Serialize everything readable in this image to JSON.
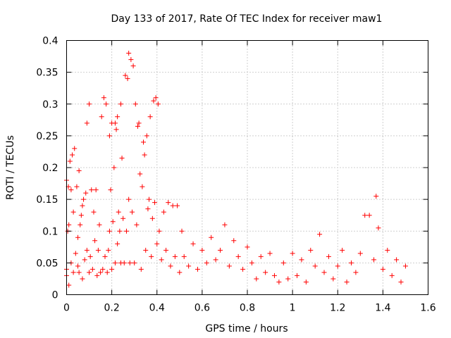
{
  "chart_data": {
    "type": "scatter",
    "title": "Day 133 of 2017, Rate Of TEC Index for receiver maw1",
    "xlabel": "GPS time / hours",
    "ylabel": "ROTI / TECUs",
    "xlim": [
      0,
      1.6
    ],
    "ylim": [
      0,
      0.4
    ],
    "x_ticks": [
      0,
      0.2,
      0.4,
      0.6,
      0.8,
      1.0,
      1.2,
      1.4,
      1.6
    ],
    "x_tick_labels": [
      "0",
      "0.2",
      "0.4",
      "0.6",
      "0.8",
      "1",
      "1.2",
      "1.4",
      "1.6"
    ],
    "y_ticks": [
      0,
      0.05,
      0.1,
      0.15,
      0.2,
      0.25,
      0.3,
      0.35,
      0.4
    ],
    "y_tick_labels": [
      "0",
      "0.05",
      "0.1",
      "0.15",
      "0.2",
      "0.25",
      "0.3",
      "0.35",
      "0.4"
    ],
    "grid": true,
    "marker": "plus",
    "series": [
      {
        "name": "ROTI",
        "color": "#ff0000",
        "points": [
          [
            0.0,
            0.03
          ],
          [
            0.0,
            0.04
          ],
          [
            0.0,
            0.18
          ],
          [
            0.005,
            0.1
          ],
          [
            0.008,
            0.17
          ],
          [
            0.01,
            0.015
          ],
          [
            0.01,
            0.11
          ],
          [
            0.015,
            0.21
          ],
          [
            0.02,
            0.05
          ],
          [
            0.02,
            0.165
          ],
          [
            0.025,
            0.22
          ],
          [
            0.03,
            0.035
          ],
          [
            0.03,
            0.13
          ],
          [
            0.035,
            0.23
          ],
          [
            0.04,
            0.065
          ],
          [
            0.045,
            0.17
          ],
          [
            0.05,
            0.045
          ],
          [
            0.05,
            0.09
          ],
          [
            0.055,
            0.035
          ],
          [
            0.055,
            0.195
          ],
          [
            0.06,
            0.11
          ],
          [
            0.065,
            0.125
          ],
          [
            0.07,
            0.025
          ],
          [
            0.07,
            0.14
          ],
          [
            0.075,
            0.15
          ],
          [
            0.08,
            0.055
          ],
          [
            0.085,
            0.16
          ],
          [
            0.09,
            0.07
          ],
          [
            0.09,
            0.27
          ],
          [
            0.1,
            0.035
          ],
          [
            0.1,
            0.3
          ],
          [
            0.105,
            0.06
          ],
          [
            0.11,
            0.165
          ],
          [
            0.115,
            0.04
          ],
          [
            0.12,
            0.13
          ],
          [
            0.125,
            0.085
          ],
          [
            0.13,
            0.165
          ],
          [
            0.135,
            0.03
          ],
          [
            0.14,
            0.07
          ],
          [
            0.145,
            0.11
          ],
          [
            0.15,
            0.035
          ],
          [
            0.155,
            0.28
          ],
          [
            0.16,
            0.04
          ],
          [
            0.165,
            0.31
          ],
          [
            0.17,
            0.06
          ],
          [
            0.175,
            0.3
          ],
          [
            0.18,
            0.035
          ],
          [
            0.185,
            0.07
          ],
          [
            0.19,
            0.1
          ],
          [
            0.19,
            0.25
          ],
          [
            0.195,
            0.165
          ],
          [
            0.2,
            0.04
          ],
          [
            0.2,
            0.27
          ],
          [
            0.205,
            0.115
          ],
          [
            0.21,
            0.2
          ],
          [
            0.215,
            0.05
          ],
          [
            0.215,
            0.27
          ],
          [
            0.22,
            0.26
          ],
          [
            0.225,
            0.08
          ],
          [
            0.225,
            0.28
          ],
          [
            0.23,
            0.13
          ],
          [
            0.235,
            0.1
          ],
          [
            0.24,
            0.05
          ],
          [
            0.24,
            0.3
          ],
          [
            0.245,
            0.215
          ],
          [
            0.25,
            0.12
          ],
          [
            0.255,
            0.05
          ],
          [
            0.26,
            0.345
          ],
          [
            0.265,
            0.1
          ],
          [
            0.27,
            0.34
          ],
          [
            0.275,
            0.15
          ],
          [
            0.275,
            0.38
          ],
          [
            0.28,
            0.05
          ],
          [
            0.285,
            0.37
          ],
          [
            0.29,
            0.13
          ],
          [
            0.295,
            0.36
          ],
          [
            0.3,
            0.05
          ],
          [
            0.305,
            0.3
          ],
          [
            0.31,
            0.11
          ],
          [
            0.315,
            0.265
          ],
          [
            0.32,
            0.27
          ],
          [
            0.325,
            0.19
          ],
          [
            0.33,
            0.04
          ],
          [
            0.335,
            0.17
          ],
          [
            0.34,
            0.24
          ],
          [
            0.345,
            0.22
          ],
          [
            0.35,
            0.07
          ],
          [
            0.355,
            0.25
          ],
          [
            0.36,
            0.135
          ],
          [
            0.365,
            0.15
          ],
          [
            0.37,
            0.28
          ],
          [
            0.375,
            0.06
          ],
          [
            0.38,
            0.12
          ],
          [
            0.385,
            0.305
          ],
          [
            0.39,
            0.145
          ],
          [
            0.395,
            0.31
          ],
          [
            0.4,
            0.08
          ],
          [
            0.405,
            0.3
          ],
          [
            0.41,
            0.1
          ],
          [
            0.42,
            0.055
          ],
          [
            0.43,
            0.13
          ],
          [
            0.44,
            0.07
          ],
          [
            0.45,
            0.145
          ],
          [
            0.46,
            0.045
          ],
          [
            0.47,
            0.14
          ],
          [
            0.48,
            0.06
          ],
          [
            0.49,
            0.14
          ],
          [
            0.5,
            0.035
          ],
          [
            0.51,
            0.1
          ],
          [
            0.52,
            0.06
          ],
          [
            0.54,
            0.045
          ],
          [
            0.56,
            0.08
          ],
          [
            0.58,
            0.04
          ],
          [
            0.6,
            0.07
          ],
          [
            0.62,
            0.05
          ],
          [
            0.64,
            0.09
          ],
          [
            0.66,
            0.055
          ],
          [
            0.68,
            0.07
          ],
          [
            0.7,
            0.11
          ],
          [
            0.72,
            0.045
          ],
          [
            0.74,
            0.085
          ],
          [
            0.76,
            0.06
          ],
          [
            0.78,
            0.04
          ],
          [
            0.8,
            0.075
          ],
          [
            0.82,
            0.05
          ],
          [
            0.84,
            0.025
          ],
          [
            0.86,
            0.06
          ],
          [
            0.88,
            0.035
          ],
          [
            0.9,
            0.065
          ],
          [
            0.92,
            0.03
          ],
          [
            0.94,
            0.02
          ],
          [
            0.96,
            0.05
          ],
          [
            0.98,
            0.025
          ],
          [
            1.0,
            0.065
          ],
          [
            1.02,
            0.03
          ],
          [
            1.04,
            0.055
          ],
          [
            1.06,
            0.02
          ],
          [
            1.08,
            0.07
          ],
          [
            1.1,
            0.045
          ],
          [
            1.12,
            0.095
          ],
          [
            1.14,
            0.035
          ],
          [
            1.16,
            0.06
          ],
          [
            1.18,
            0.025
          ],
          [
            1.2,
            0.045
          ],
          [
            1.22,
            0.07
          ],
          [
            1.24,
            0.02
          ],
          [
            1.26,
            0.05
          ],
          [
            1.28,
            0.035
          ],
          [
            1.3,
            0.065
          ],
          [
            1.32,
            0.125
          ],
          [
            1.34,
            0.125
          ],
          [
            1.36,
            0.055
          ],
          [
            1.37,
            0.155
          ],
          [
            1.38,
            0.105
          ],
          [
            1.4,
            0.04
          ],
          [
            1.42,
            0.07
          ],
          [
            1.44,
            0.03
          ],
          [
            1.46,
            0.055
          ],
          [
            1.48,
            0.02
          ],
          [
            1.5,
            0.045
          ]
        ]
      }
    ]
  }
}
